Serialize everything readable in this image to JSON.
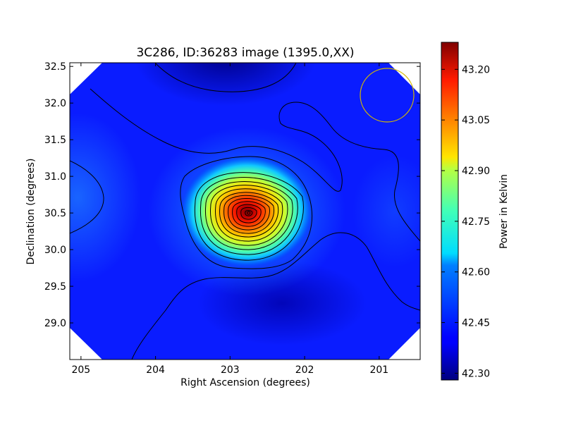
{
  "chart_data": {
    "type": "heatmap",
    "title": "3C286, ID:36283 image (1395.0,XX)",
    "xlabel": "Right Ascension (degrees)",
    "ylabel": "Declination (degrees)",
    "xlim": [
      205.15,
      200.45
    ],
    "ylim": [
      28.5,
      32.55
    ],
    "x_ticks": [
      205,
      204,
      203,
      202,
      201
    ],
    "y_ticks": [
      29.0,
      29.5,
      30.0,
      30.5,
      31.0,
      31.5,
      32.0,
      32.5
    ],
    "x_tick_labels": [
      "205",
      "204",
      "203",
      "202",
      "201"
    ],
    "y_tick_labels": [
      "29.0",
      "29.5",
      "30.0",
      "30.5",
      "31.0",
      "31.5",
      "32.0",
      "32.5"
    ],
    "colorbar": {
      "label": "Power in Kelvin",
      "range": [
        42.28,
        43.28
      ],
      "ticks": [
        42.3,
        42.45,
        42.6,
        42.75,
        42.9,
        43.05,
        43.2
      ],
      "tick_labels": [
        "42.30",
        "42.45",
        "42.60",
        "42.75",
        "42.90",
        "43.05",
        "43.20"
      ],
      "colormap": "jet"
    },
    "source": {
      "ra": 202.75,
      "dec": 30.5,
      "peak": 43.26
    },
    "background_level": 42.4,
    "beam_circle": {
      "ra": 200.9,
      "dec": 32.05,
      "color": "#d4b800"
    },
    "grid": false
  }
}
